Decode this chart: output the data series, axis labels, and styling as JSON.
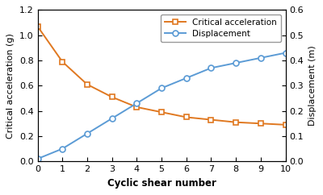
{
  "x": [
    0,
    1,
    2,
    3,
    4,
    5,
    6,
    7,
    8,
    9,
    10
  ],
  "critical_acceleration": [
    1.07,
    0.79,
    0.61,
    0.51,
    0.43,
    0.39,
    0.35,
    0.33,
    0.31,
    0.3,
    0.29
  ],
  "displacement": [
    0.01,
    0.05,
    0.11,
    0.17,
    0.23,
    0.29,
    0.33,
    0.37,
    0.39,
    0.41,
    0.43
  ],
  "accel_color": "#E07820",
  "disp_color": "#5B9BD5",
  "accel_label": "Critical acceleration",
  "disp_label": "Displacement",
  "xlabel": "Cyclic shear number",
  "ylabel_left": "Critical acceleration (g)",
  "ylabel_right": "Displacement (m)",
  "xlim": [
    0,
    10
  ],
  "ylim_left": [
    0,
    1.2
  ],
  "ylim_right": [
    0.0,
    0.6
  ],
  "yticks_left": [
    0.0,
    0.2,
    0.4,
    0.6,
    0.8,
    1.0,
    1.2
  ],
  "yticks_right": [
    0.0,
    0.1,
    0.2,
    0.3,
    0.4,
    0.5,
    0.6
  ],
  "xticks": [
    0,
    1,
    2,
    3,
    4,
    5,
    6,
    7,
    8,
    9,
    10
  ],
  "marker_accel": "s",
  "marker_disp": "o",
  "linewidth": 1.4,
  "markersize": 5,
  "background_color": "#ffffff"
}
